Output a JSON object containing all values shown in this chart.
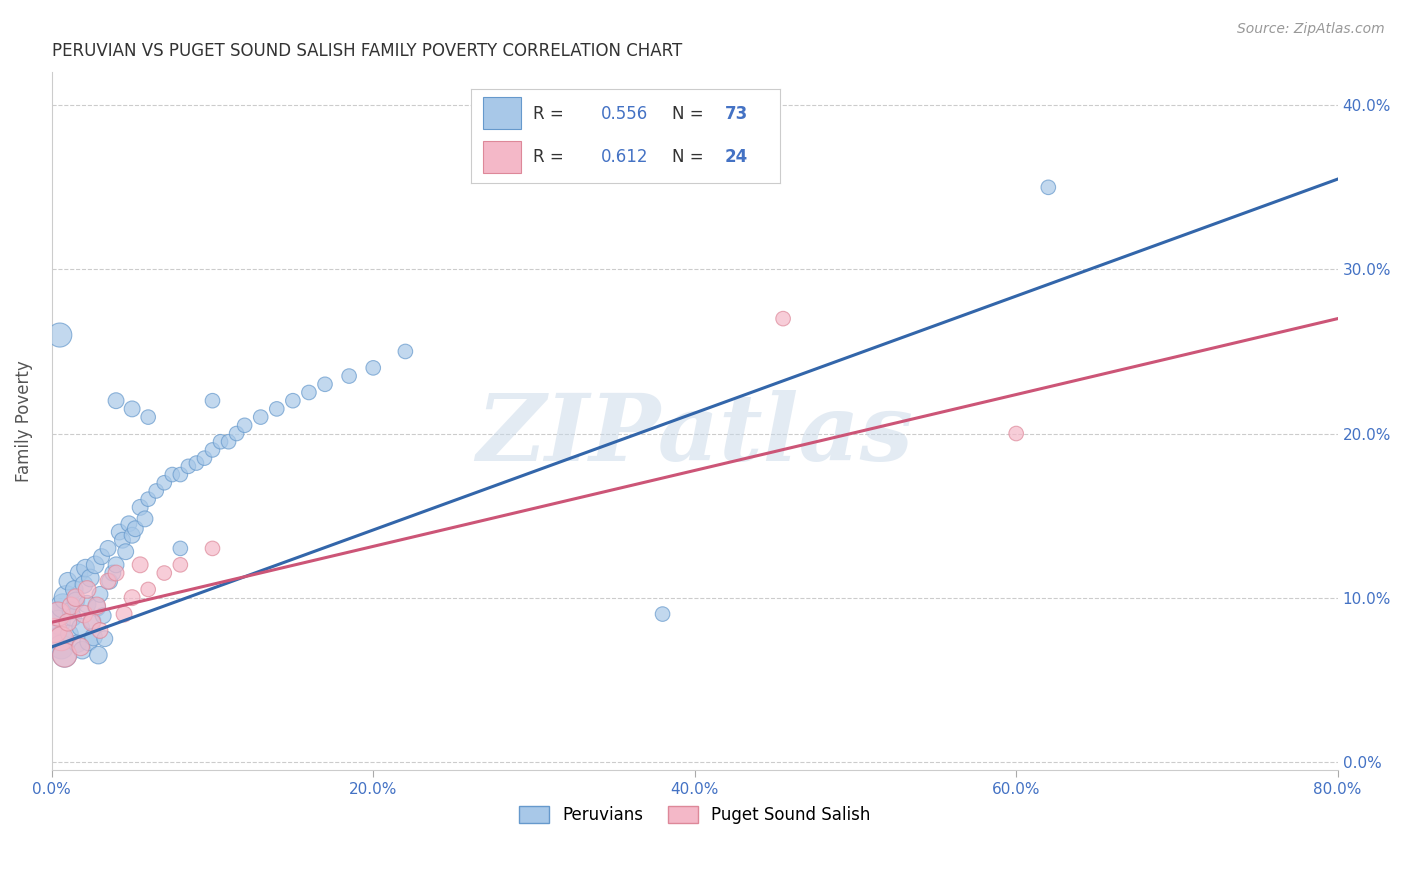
{
  "title": "PERUVIAN VS PUGET SOUND SALISH FAMILY POVERTY CORRELATION CHART",
  "source": "Source: ZipAtlas.com",
  "ylabel": "Family Poverty",
  "xlim": [
    0.0,
    0.8
  ],
  "ylim": [
    -0.005,
    0.42
  ],
  "x_ticks": [
    0.0,
    0.2,
    0.4,
    0.6,
    0.8
  ],
  "x_tick_labels": [
    "0.0%",
    "20.0%",
    "40.0%",
    "60.0%",
    "80.0%"
  ],
  "y_ticks_right": [
    0.0,
    0.1,
    0.2,
    0.3,
    0.4
  ],
  "y_tick_labels_right": [
    "0.0%",
    "10.0%",
    "20.0%",
    "30.0%",
    "40.0%"
  ],
  "group1_name": "Peruvians",
  "group1_color": "#a8c8e8",
  "group1_edge_color": "#6699cc",
  "group1_line_color": "#3366aa",
  "group1_R": 0.556,
  "group1_N": 73,
  "group2_name": "Puget Sound Salish",
  "group2_color": "#f4b8c8",
  "group2_edge_color": "#dd8899",
  "group2_line_color": "#cc5577",
  "group2_R": 0.612,
  "group2_N": 24,
  "watermark_text": "ZIPatlas",
  "background_color": "#ffffff",
  "grid_color": "#cccccc",
  "title_color": "#333333",
  "axis_label_color": "#555555",
  "tick_label_color": "#4472c4",
  "source_color": "#999999",
  "blue_line_y0": 0.07,
  "blue_line_y1": 0.355,
  "pink_line_y0": 0.085,
  "pink_line_y1": 0.27,
  "group1_x": [
    0.002,
    0.003,
    0.004,
    0.005,
    0.006,
    0.007,
    0.008,
    0.009,
    0.01,
    0.011,
    0.012,
    0.013,
    0.014,
    0.015,
    0.016,
    0.017,
    0.018,
    0.019,
    0.02,
    0.021,
    0.022,
    0.023,
    0.024,
    0.025,
    0.026,
    0.027,
    0.028,
    0.029,
    0.03,
    0.031,
    0.032,
    0.033,
    0.035,
    0.036,
    0.038,
    0.04,
    0.042,
    0.044,
    0.046,
    0.048,
    0.05,
    0.052,
    0.055,
    0.058,
    0.06,
    0.065,
    0.07,
    0.075,
    0.08,
    0.085,
    0.09,
    0.095,
    0.1,
    0.105,
    0.11,
    0.115,
    0.12,
    0.13,
    0.14,
    0.15,
    0.16,
    0.17,
    0.185,
    0.2,
    0.22,
    0.04,
    0.05,
    0.06,
    0.08,
    0.1,
    0.38,
    0.62,
    0.005
  ],
  "group1_y": [
    0.08,
    0.09,
    0.085,
    0.075,
    0.07,
    0.095,
    0.065,
    0.1,
    0.11,
    0.078,
    0.092,
    0.088,
    0.105,
    0.098,
    0.072,
    0.115,
    0.082,
    0.068,
    0.108,
    0.118,
    0.096,
    0.073,
    0.112,
    0.086,
    0.076,
    0.12,
    0.094,
    0.065,
    0.102,
    0.125,
    0.089,
    0.075,
    0.13,
    0.11,
    0.115,
    0.12,
    0.14,
    0.135,
    0.128,
    0.145,
    0.138,
    0.142,
    0.155,
    0.148,
    0.16,
    0.165,
    0.17,
    0.175,
    0.175,
    0.18,
    0.182,
    0.185,
    0.19,
    0.195,
    0.195,
    0.2,
    0.205,
    0.21,
    0.215,
    0.22,
    0.225,
    0.23,
    0.235,
    0.24,
    0.25,
    0.22,
    0.215,
    0.21,
    0.13,
    0.22,
    0.09,
    0.35,
    0.26
  ],
  "group2_x": [
    0.002,
    0.004,
    0.006,
    0.008,
    0.01,
    0.012,
    0.015,
    0.018,
    0.02,
    0.022,
    0.025,
    0.028,
    0.03,
    0.035,
    0.04,
    0.045,
    0.05,
    0.055,
    0.06,
    0.07,
    0.08,
    0.1,
    0.455,
    0.6
  ],
  "group2_y": [
    0.08,
    0.09,
    0.075,
    0.065,
    0.085,
    0.095,
    0.1,
    0.07,
    0.09,
    0.105,
    0.085,
    0.095,
    0.08,
    0.11,
    0.115,
    0.09,
    0.1,
    0.12,
    0.105,
    0.115,
    0.12,
    0.13,
    0.27,
    0.2
  ]
}
